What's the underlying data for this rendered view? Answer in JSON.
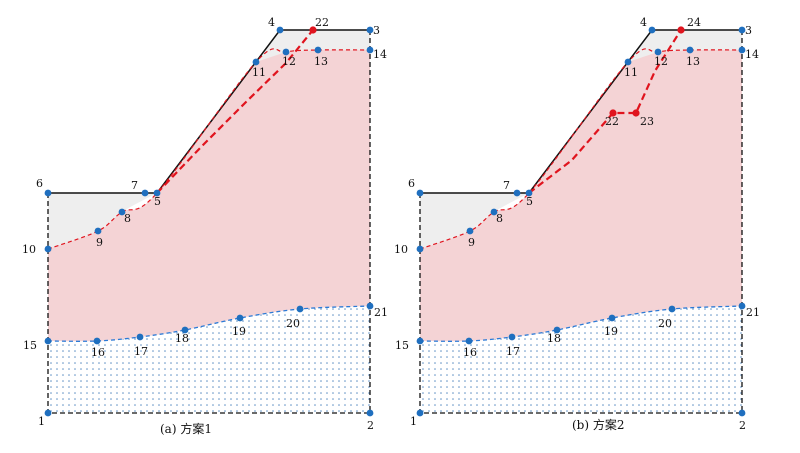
{
  "colors": {
    "node": "#1f6fbf",
    "red_node": "#e0141e",
    "red_line": "#e0141e",
    "blue_line": "#2c7ad6",
    "pink_fill": "#f4d3d5",
    "gray_fill": "#eeeeee",
    "outline": "#111111",
    "dots": "#5e8fc4"
  },
  "panels": [
    {
      "caption": "(a) 方案1",
      "labels": {
        "1": "1",
        "2": "2",
        "3": "3",
        "4": "4",
        "5": "5",
        "6": "6",
        "7": "7",
        "8": "8",
        "9": "9",
        "10": "10",
        "11": "11",
        "12": "12",
        "13": "13",
        "14": "14",
        "15": "15",
        "16": "16",
        "17": "17",
        "18": "18",
        "19": "19",
        "20": "20",
        "21": "21",
        "r1": "22"
      }
    },
    {
      "caption": "(b) 方案2",
      "labels": {
        "1": "1",
        "2": "2",
        "3": "3",
        "4": "4",
        "5": "5",
        "6": "6",
        "7": "7",
        "8": "8",
        "9": "9",
        "10": "10",
        "11": "11",
        "12": "12",
        "13": "13",
        "14": "14",
        "15": "15",
        "16": "16",
        "17": "17",
        "18": "18",
        "19": "19",
        "20": "20",
        "21": "21",
        "r1": "22",
        "r2": "23",
        "r3": "24"
      }
    }
  ]
}
